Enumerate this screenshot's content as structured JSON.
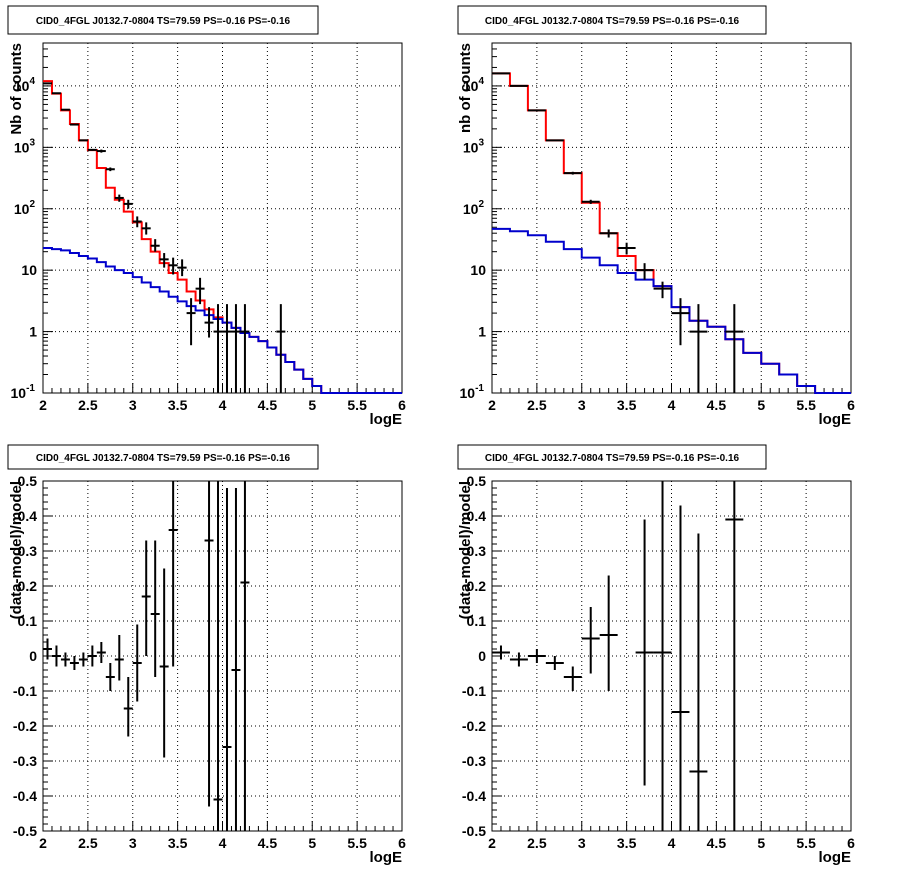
{
  "panels": [
    {
      "title": "CID0_4FGL J0132.7-0804 TS=79.59 PS=-0.16 PS=-0.16",
      "xlabel": "logE",
      "ylabel": "Nb of counts",
      "xticks": [
        "2",
        "2.5",
        "3",
        "3.5",
        "4",
        "4.5",
        "5",
        "5.5",
        "6"
      ],
      "yticks": [
        "10^-1",
        "1",
        "10",
        "10^2",
        "10^3",
        "10^4"
      ]
    },
    {
      "title": "CID0_4FGL J0132.7-0804 TS=79.59 PS=-0.16 PS=-0.16",
      "xlabel": "logE",
      "ylabel": "nb of counts",
      "xticks": [
        "2",
        "2.5",
        "3",
        "3.5",
        "4",
        "4.5",
        "5",
        "5.5",
        "6"
      ],
      "yticks": [
        "10^-1",
        "1",
        "10",
        "10^2",
        "10^3",
        "10^4"
      ]
    },
    {
      "title": "CID0_4FGL J0132.7-0804 TS=79.59 PS=-0.16 PS=-0.16",
      "xlabel": "logE",
      "ylabel": "(data-model)/model",
      "xticks": [
        "2",
        "2.5",
        "3",
        "3.5",
        "4",
        "4.5",
        "5",
        "5.5",
        "6"
      ],
      "yticks": [
        "-0.5",
        "-0.4",
        "-0.3",
        "-0.2",
        "-0.1",
        "0",
        "0.1",
        "0.2",
        "0.3",
        "0.4",
        "0.5"
      ]
    },
    {
      "title": "CID0_4FGL J0132.7-0804 TS=79.59 PS=-0.16 PS=-0.16",
      "xlabel": "logE",
      "ylabel": "(data-model)/model",
      "xticks": [
        "2",
        "2.5",
        "3",
        "3.5",
        "4",
        "4.5",
        "5",
        "5.5",
        "6"
      ],
      "yticks": [
        "-0.5",
        "-0.4",
        "-0.3",
        "-0.2",
        "-0.1",
        "0",
        "0.1",
        "0.2",
        "0.3",
        "0.4",
        "0.5"
      ]
    }
  ],
  "chart_data": [
    {
      "type": "line",
      "yscale": "log",
      "xlim": [
        2,
        6
      ],
      "ylim": [
        0.1,
        50000
      ],
      "grid": true,
      "series": [
        {
          "color": "#ff0000",
          "style": "step",
          "edges": [
            2.0,
            2.1,
            2.2,
            2.3,
            2.4,
            2.5,
            2.6,
            2.7,
            2.8,
            2.9,
            3.0,
            3.1,
            3.2,
            3.3,
            3.4,
            3.5,
            3.6,
            3.7,
            3.8,
            3.9,
            4.0,
            4.1,
            4.2,
            4.3,
            4.4,
            4.5,
            4.6,
            4.7,
            4.8,
            4.9,
            5.0,
            5.1,
            5.2,
            5.3,
            5.4,
            5.5,
            5.6,
            5.7,
            5.8,
            5.9,
            6.0
          ],
          "values": [
            12000,
            7500,
            4000,
            2400,
            1300,
            900,
            460,
            220,
            140,
            90,
            60,
            32,
            20,
            13,
            9,
            7,
            4.5,
            3.2,
            2.3,
            1.7,
            1.4,
            1.15,
            0.95,
            0.82,
            0.7,
            0.55,
            0.42,
            0.32,
            0.24,
            0.17,
            0.13,
            0.1,
            0.1,
            0.1,
            0.1,
            0.1,
            0.1,
            0.1,
            0.1,
            0.1
          ]
        },
        {
          "color": "#0000cc",
          "style": "step",
          "edges": [
            2.0,
            2.1,
            2.2,
            2.3,
            2.4,
            2.5,
            2.6,
            2.7,
            2.8,
            2.9,
            3.0,
            3.1,
            3.2,
            3.3,
            3.4,
            3.5,
            3.6,
            3.7,
            3.8,
            3.9,
            4.0,
            4.1,
            4.2,
            4.3,
            4.4,
            4.5,
            4.6,
            4.7,
            4.8,
            4.9,
            5.0,
            5.1,
            5.2,
            5.3,
            5.4,
            5.5,
            5.6,
            5.7,
            5.8,
            5.9,
            6.0
          ],
          "values": [
            23,
            22,
            21,
            19,
            17,
            15.5,
            13.5,
            11.5,
            10,
            9,
            7.7,
            6.3,
            5.3,
            4.5,
            3.7,
            3.1,
            2.6,
            2.2,
            1.85,
            1.6,
            1.4,
            1.15,
            0.95,
            0.82,
            0.7,
            0.55,
            0.42,
            0.32,
            0.24,
            0.17,
            0.13,
            0.1,
            0.1,
            0.1,
            0.1,
            0.1,
            0.1,
            0.1,
            0.1,
            0.1
          ]
        },
        {
          "color": "#000000",
          "style": "errorbar",
          "x": [
            2.05,
            2.15,
            2.25,
            2.35,
            2.45,
            2.55,
            2.65,
            2.75,
            2.85,
            2.95,
            3.05,
            3.15,
            3.25,
            3.35,
            3.45,
            3.55,
            3.65,
            3.75,
            3.85,
            3.95,
            4.05,
            4.15,
            4.25,
            4.65
          ],
          "xerr": 0.05,
          "y": [
            11000,
            7600,
            4100,
            2350,
            1300,
            910,
            870,
            440,
            150,
            120,
            62,
            48,
            25,
            15,
            12,
            11,
            2,
            5,
            1.4,
            1,
            1,
            1,
            1,
            1
          ],
          "ylo": [
            10800,
            7450,
            4000,
            2300,
            1270,
            880,
            820,
            410,
            130,
            100,
            50,
            38,
            20,
            11,
            8.5,
            8,
            0.6,
            2.8,
            0.8,
            0.1,
            0.1,
            0.1,
            0.1,
            0.1
          ],
          "yhi": [
            11200,
            7750,
            4200,
            2400,
            1330,
            940,
            920,
            470,
            170,
            140,
            75,
            60,
            32,
            19,
            16,
            15,
            3.5,
            7.5,
            2.5,
            2.8,
            2.8,
            2.8,
            2.8,
            2.8
          ]
        }
      ]
    },
    {
      "type": "line",
      "yscale": "log",
      "xlim": [
        2,
        6
      ],
      "ylim": [
        0.1,
        50000
      ],
      "grid": true,
      "series": [
        {
          "color": "#ff0000",
          "style": "step",
          "edges": [
            2.0,
            2.2,
            2.4,
            2.6,
            2.8,
            3.0,
            3.2,
            3.4,
            3.6,
            3.8,
            4.0,
            4.2,
            4.4,
            4.6,
            4.8,
            5.0,
            5.2,
            5.4,
            5.6,
            5.8,
            6.0
          ],
          "values": [
            16000,
            10000,
            4000,
            1300,
            380,
            125,
            40,
            17,
            10,
            5.5,
            2.5,
            1.5,
            1.2,
            0.75,
            0.45,
            0.3,
            0.2,
            0.13,
            0.1,
            0.1
          ]
        },
        {
          "color": "#0000cc",
          "style": "step",
          "edges": [
            2.0,
            2.2,
            2.4,
            2.6,
            2.8,
            3.0,
            3.2,
            3.4,
            3.6,
            3.8,
            4.0,
            4.2,
            4.4,
            4.6,
            4.8,
            5.0,
            5.2,
            5.4,
            5.6,
            5.8,
            6.0
          ],
          "values": [
            47,
            43,
            37,
            29,
            22,
            16,
            12,
            9,
            7,
            5.5,
            2.5,
            1.5,
            1.2,
            0.75,
            0.45,
            0.3,
            0.2,
            0.13,
            0.1,
            0.1
          ]
        },
        {
          "color": "#000000",
          "style": "errorbar",
          "x": [
            2.1,
            2.3,
            2.5,
            2.7,
            2.9,
            3.1,
            3.3,
            3.5,
            3.7,
            3.9,
            4.1,
            4.3,
            4.7
          ],
          "xerr": 0.1,
          "y": [
            16000,
            10000,
            4000,
            1300,
            380,
            130,
            40,
            23,
            10,
            5,
            2,
            1,
            1
          ],
          "ylo": [
            15800,
            9900,
            3950,
            1270,
            360,
            120,
            34,
            18,
            7,
            3.5,
            0.6,
            0.1,
            0.1
          ],
          "yhi": [
            16200,
            10100,
            4050,
            1330,
            400,
            140,
            46,
            28,
            13,
            6.5,
            3.5,
            2.8,
            2.8
          ]
        }
      ]
    },
    {
      "type": "scatter",
      "xlim": [
        2,
        6
      ],
      "ylim": [
        -0.5,
        0.5
      ],
      "grid": true,
      "series": [
        {
          "color": "#000000",
          "style": "errorbar",
          "x": [
            2.05,
            2.15,
            2.25,
            2.35,
            2.45,
            2.55,
            2.65,
            2.75,
            2.85,
            2.95,
            3.05,
            3.15,
            3.25,
            3.35,
            3.45,
            3.85,
            3.95,
            4.05,
            4.15,
            4.25
          ],
          "xerr": 0.05,
          "y": [
            0.02,
            0.0,
            -0.01,
            -0.02,
            -0.01,
            0.0,
            0.01,
            -0.06,
            -0.01,
            -0.15,
            -0.02,
            0.17,
            0.12,
            -0.03,
            0.36,
            0.33,
            -0.41,
            -0.26,
            -0.04,
            0.21
          ],
          "ylo": [
            -0.01,
            -0.03,
            -0.03,
            -0.04,
            -0.03,
            -0.03,
            -0.02,
            -0.1,
            -0.07,
            -0.23,
            -0.13,
            0.0,
            -0.06,
            -0.29,
            -0.03,
            -0.43,
            -0.5,
            -0.5,
            -0.5,
            -0.5
          ],
          "yhi": [
            0.05,
            0.03,
            0.01,
            0.0,
            0.01,
            0.03,
            0.04,
            -0.02,
            0.06,
            -0.06,
            0.09,
            0.33,
            0.33,
            0.25,
            0.5,
            0.5,
            0.5,
            0.48,
            0.48,
            0.5
          ]
        }
      ]
    },
    {
      "type": "scatter",
      "xlim": [
        2,
        6
      ],
      "ylim": [
        -0.5,
        0.5
      ],
      "grid": true,
      "series": [
        {
          "color": "#000000",
          "style": "errorbar",
          "x": [
            2.1,
            2.3,
            2.5,
            2.7,
            2.9,
            3.1,
            3.3,
            3.7,
            3.9,
            4.1,
            4.3,
            4.7
          ],
          "xerr": 0.1,
          "y": [
            0.01,
            -0.01,
            0.0,
            -0.02,
            -0.06,
            0.05,
            0.06,
            0.01,
            0.01,
            -0.16,
            -0.33,
            0.39
          ],
          "ylo": [
            -0.01,
            -0.03,
            -0.02,
            -0.04,
            -0.1,
            -0.05,
            -0.1,
            -0.37,
            -0.5,
            -0.5,
            -0.5,
            -0.5
          ],
          "yhi": [
            0.03,
            0.01,
            0.02,
            0.0,
            -0.03,
            0.14,
            0.23,
            0.39,
            0.5,
            0.43,
            0.35,
            0.5
          ]
        }
      ]
    }
  ]
}
